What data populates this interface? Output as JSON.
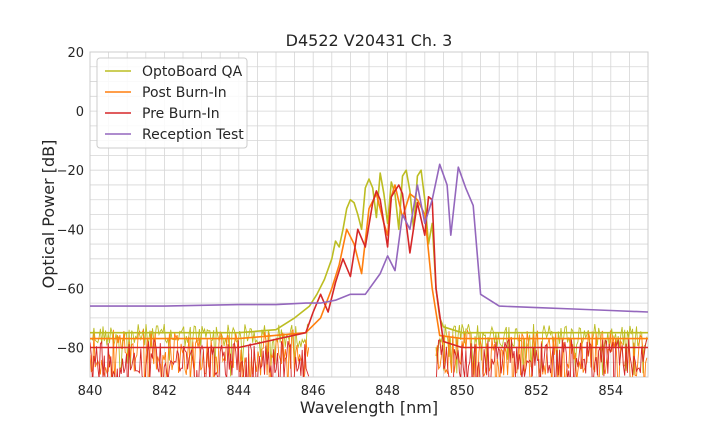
{
  "chart_data": {
    "type": "line",
    "title": "D4522 V20431 Ch. 3",
    "xlabel": "Wavelength [nm]",
    "ylabel": "Optical Power [dB]",
    "xlim": [
      840,
      855
    ],
    "ylim": [
      -90,
      20
    ],
    "xticks": [
      840,
      842,
      844,
      846,
      848,
      850,
      852,
      854
    ],
    "xtick_labels": [
      "840",
      "842",
      "844",
      "846",
      "848",
      "850",
      "852",
      "854"
    ],
    "yticks": [
      20,
      0,
      -20,
      -40,
      -60,
      -80
    ],
    "ytick_labels": [
      "20",
      "0",
      "−20",
      "−40",
      "−60",
      "−80"
    ],
    "grid": true,
    "legend_position": "top-left",
    "series": [
      {
        "name": "OptoBoard QA",
        "color": "#bcbd22",
        "x": [
          840,
          841,
          842,
          843,
          844,
          845,
          845.5,
          845.9,
          846.1,
          846.3,
          846.5,
          846.6,
          846.7,
          846.8,
          846.9,
          847.0,
          847.1,
          847.2,
          847.3,
          847.4,
          847.5,
          847.6,
          847.7,
          847.8,
          847.9,
          848.0,
          848.1,
          848.2,
          848.3,
          848.4,
          848.5,
          848.6,
          848.7,
          848.8,
          848.9,
          849.0,
          849.1,
          849.2,
          849.3,
          849.4,
          849.5,
          850,
          852,
          855
        ],
        "y": [
          -75,
          -75,
          -75,
          -75,
          -75,
          -74,
          -70,
          -66,
          -62,
          -57,
          -50,
          -44,
          -46,
          -40,
          -33,
          -30,
          -31,
          -35,
          -40,
          -26,
          -23,
          -26,
          -36,
          -21,
          -28,
          -38,
          -24,
          -28,
          -40,
          -22,
          -20,
          -27,
          -40,
          -22,
          -20,
          -30,
          -45,
          -38,
          -60,
          -70,
          -73,
          -75,
          -75,
          -75
        ]
      },
      {
        "name": "Post Burn-In",
        "color": "#ff7f0e",
        "x": [
          840,
          842,
          844,
          845.8,
          846.2,
          846.5,
          846.7,
          846.9,
          847.1,
          847.3,
          847.5,
          847.7,
          847.9,
          848.0,
          848.1,
          848.2,
          848.4,
          848.6,
          848.8,
          849.0,
          849.2,
          849.4,
          850,
          852,
          855
        ],
        "y": [
          -77,
          -77,
          -77,
          -75,
          -70,
          -60,
          -52,
          -40,
          -45,
          -55,
          -33,
          -28,
          -38,
          -42,
          -29,
          -25,
          -36,
          -28,
          -30,
          -35,
          -60,
          -76,
          -77,
          -77,
          -77
        ]
      },
      {
        "name": "Pre Burn-In",
        "color": "#d62728",
        "x": [
          840,
          842,
          844,
          845.8,
          846.0,
          846.2,
          846.4,
          846.6,
          846.8,
          847.0,
          847.2,
          847.4,
          847.6,
          847.7,
          847.8,
          848.0,
          848.1,
          848.2,
          848.3,
          848.4,
          848.6,
          848.8,
          849.0,
          849.1,
          849.2,
          849.3,
          849.5,
          850,
          852,
          855
        ],
        "y": [
          -80,
          -80,
          -80,
          -75,
          -68,
          -62,
          -68,
          -58,
          -50,
          -56,
          -40,
          -46,
          -31,
          -27,
          -30,
          -46,
          -29,
          -27,
          -25,
          -28,
          -48,
          -31,
          -42,
          -29,
          -30,
          -60,
          -78,
          -80,
          -80,
          -80
        ]
      },
      {
        "name": "Reception Test",
        "color": "#9467bd",
        "x": [
          840,
          842,
          844,
          845,
          845.8,
          846.2,
          846.6,
          847.0,
          847.4,
          847.8,
          848.0,
          848.2,
          848.4,
          848.6,
          848.8,
          849.0,
          849.2,
          849.4,
          849.6,
          849.7,
          849.9,
          850.1,
          850.3,
          850.5,
          851,
          852,
          853,
          854,
          855
        ],
        "y": [
          -66,
          -66,
          -65.5,
          -65.5,
          -65,
          -65,
          -64,
          -62,
          -62,
          -55,
          -49,
          -54,
          -35,
          -40,
          -25,
          -38,
          -30,
          -18,
          -25,
          -42,
          -19,
          -26,
          -32,
          -62,
          -66,
          -66.5,
          -67,
          -67.5,
          -68
        ]
      }
    ]
  }
}
